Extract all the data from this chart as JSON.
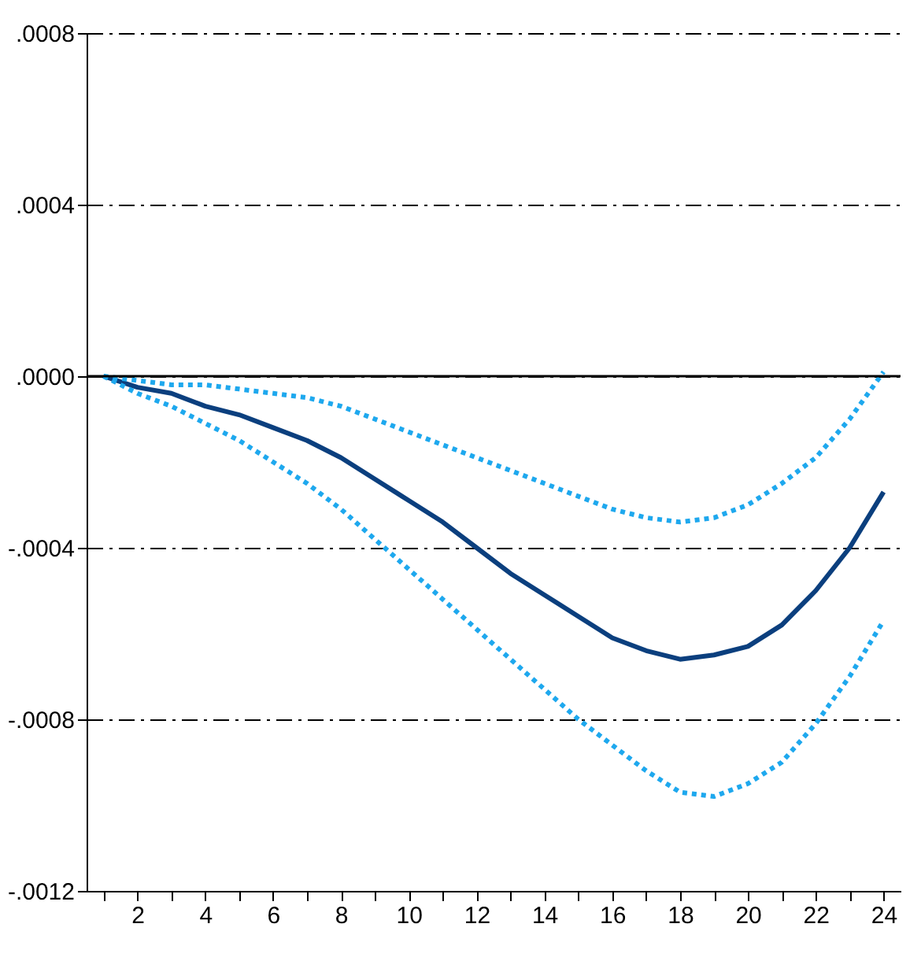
{
  "chart_data": {
    "type": "line",
    "x": [
      1,
      2,
      3,
      4,
      5,
      6,
      7,
      8,
      9,
      10,
      11,
      12,
      13,
      14,
      15,
      16,
      17,
      18,
      19,
      20,
      21,
      22,
      23,
      24
    ],
    "series": [
      {
        "color": "#0b3f7e",
        "line_style": "solid",
        "values": [
          0,
          -2.6e-05,
          -4e-05,
          -7e-05,
          -9e-05,
          -0.00012,
          -0.00015,
          -0.00019,
          -0.00024,
          -0.00029,
          -0.00034,
          -0.0004,
          -0.00046,
          -0.00051,
          -0.00056,
          -0.00061,
          -0.00064,
          -0.00066,
          -0.00065,
          -0.00063,
          -0.00058,
          -0.0005,
          -0.0004,
          -0.00027
        ]
      },
      {
        "color": "#1ea8ee",
        "line_style": "dotted",
        "values": [
          0,
          -1e-05,
          -2e-05,
          -2e-05,
          -3e-05,
          -4e-05,
          -5e-05,
          -7e-05,
          -0.0001,
          -0.00013,
          -0.00016,
          -0.00019,
          -0.00022,
          -0.00025,
          -0.00028,
          -0.00031,
          -0.00033,
          -0.00034,
          -0.00033,
          -0.0003,
          -0.00025,
          -0.00019,
          -0.0001,
          1e-05
        ]
      },
      {
        "color": "#1ea8ee",
        "line_style": "dotted",
        "values": [
          0,
          -4e-05,
          -7e-05,
          -0.00011,
          -0.00015,
          -0.0002,
          -0.00025,
          -0.00031,
          -0.00038,
          -0.00045,
          -0.00052,
          -0.00059,
          -0.00066,
          -0.00073,
          -0.0008,
          -0.00086,
          -0.00092,
          -0.00097,
          -0.00098,
          -0.00095,
          -0.0009,
          -0.00081,
          -0.0007,
          -0.00057
        ]
      }
    ],
    "xlim": [
      0.5,
      24.5
    ],
    "xticks": [
      {
        "value": 1,
        "label": null
      },
      2,
      {
        "value": 3,
        "label": null
      },
      4,
      {
        "value": 5,
        "label": null
      },
      6,
      {
        "value": 7,
        "label": null
      },
      8,
      {
        "value": 9,
        "label": null
      },
      10,
      {
        "value": 11,
        "label": null
      },
      12,
      {
        "value": 13,
        "label": null
      },
      14,
      {
        "value": 15,
        "label": null
      },
      16,
      {
        "value": 17,
        "label": null
      },
      18,
      {
        "value": 19,
        "label": null
      },
      20,
      {
        "value": 21,
        "label": null
      },
      22,
      {
        "value": 23,
        "label": null
      },
      24
    ],
    "ylim": [
      -0.0012,
      0.0008
    ],
    "yticks": [
      {
        "value": -0.0012,
        "label": "-.0012"
      },
      {
        "value": -0.0008,
        "label": "-.0008"
      },
      {
        "value": -0.0004,
        "label": "-.0004"
      },
      {
        "value": 0,
        "label": ".0000"
      },
      {
        "value": 0.0004,
        "label": ".0004"
      },
      {
        "value": 0.0008,
        "label": ".0008"
      }
    ],
    "grid": "y",
    "ref_lines": [
      {
        "axis": "y",
        "value": 0,
        "color": "#000000",
        "line_style": "solid"
      }
    ]
  }
}
